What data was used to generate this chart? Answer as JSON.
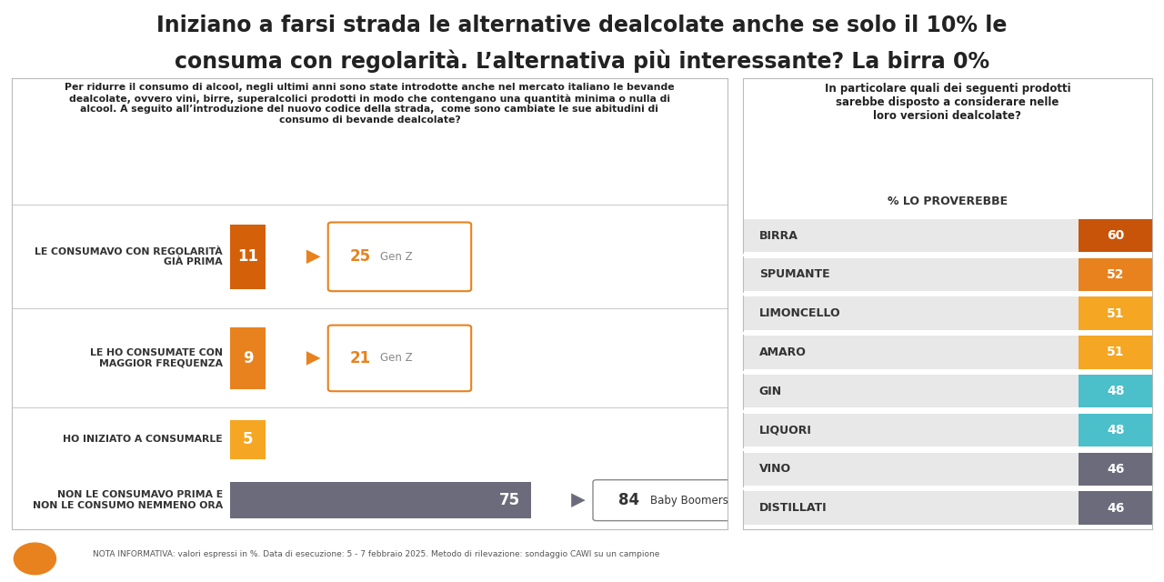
{
  "title_line1": "Iniziano a farsi strada le alternative dealcolate anche se solo il 10% le",
  "title_line2": "consuma con regolarità. L’alternativa più interessante? La birra 0%",
  "left_question": "Per ridurre il consumo di alcool, negli ultimi anni sono state introdotte anche nel mercato italiano le bevande\ndealcolate, ovvero vini, birre, superalcolici prodotti in modo che contengano una quantità minima o nulla di\nalcool. A seguito all’introduzione del nuovo codice della strada,  come sono cambiate le sue abitudini di\nconsumo di bevande dealcolate?",
  "right_question": "In particolare quali dei seguenti prodotti\nsarebbe disposto a considerare nelle\nloro versioni dealcolate?",
  "right_subtitle": "% LO PROVEREBBE",
  "left_rows": [
    {
      "label": "LE CONSUMAVO CON REGOLARITÀ\nGIÀ PRIMA",
      "value": 11,
      "arrow_value": 25,
      "arrow_label": "Gen Z",
      "bar_color": "#D4600A",
      "arrow_color": "#E8821E",
      "has_arrow": true,
      "arrow_outlined": false
    },
    {
      "label": "LE HO CONSUMATE CON\nMAGGIOR FREQUENZA",
      "value": 9,
      "arrow_value": 21,
      "arrow_label": "Gen Z",
      "bar_color": "#E8821E",
      "arrow_color": "#E8821E",
      "has_arrow": true,
      "arrow_outlined": false
    },
    {
      "label": "HO INIZIATO A CONSUMARLE",
      "value": 5,
      "arrow_value": null,
      "arrow_label": null,
      "bar_color": "#F5A623",
      "arrow_color": null,
      "has_arrow": false,
      "arrow_outlined": false
    },
    {
      "label": "NON LE CONSUMAVO PRIMA E\nNON LE CONSUMO NEMMENO ORA",
      "value": 75,
      "arrow_value": 84,
      "arrow_label": "Baby Boomers",
      "bar_color": "#6B6B7B",
      "arrow_color": "#6B6B7B",
      "has_arrow": true,
      "arrow_outlined": true
    }
  ],
  "right_bars": [
    {
      "label": "BIRRA",
      "value": 60,
      "color": "#C8540A"
    },
    {
      "label": "SPUMANTE",
      "value": 52,
      "color": "#E8821E"
    },
    {
      "label": "LIMONCELLO",
      "value": 51,
      "color": "#F5A623"
    },
    {
      "label": "AMARO",
      "value": 51,
      "color": "#F5A623"
    },
    {
      "label": "GIN",
      "value": 48,
      "color": "#4BBFCA"
    },
    {
      "label": "LIQUORI",
      "value": 48,
      "color": "#4BBFCA"
    },
    {
      "label": "VINO",
      "value": 46,
      "color": "#6B6B7B"
    },
    {
      "label": "DISTILLATI",
      "value": 46,
      "color": "#6B6B7B"
    }
  ],
  "bg_color": "#FFFFFF",
  "footnote": "NOTA INFORMATIVA: valori espressi in %. Data di esecuzione: 5 - 7 febbraio 2025. Metodo di rilevazione: sondaggio CAWI su un campione"
}
